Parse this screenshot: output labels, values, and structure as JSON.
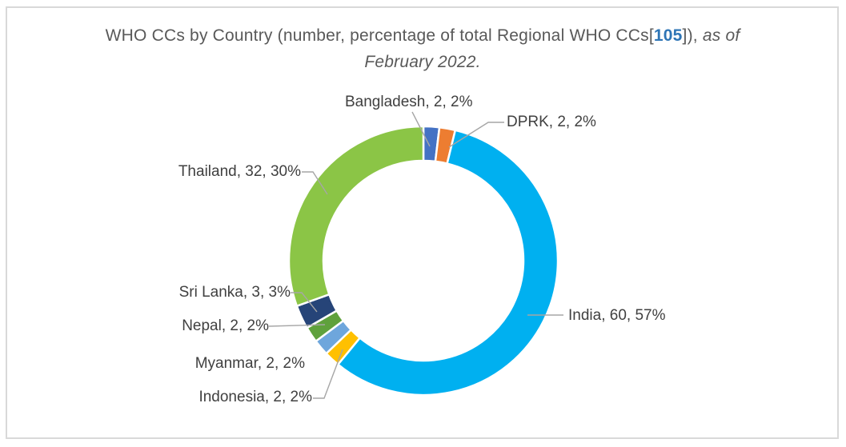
{
  "title": {
    "prefix": "WHO CCs by Country (number, percentage of total Regional WHO CCs[",
    "ref": "105",
    "middle": "]), ",
    "italic": "as of February 2022."
  },
  "chart_data": {
    "type": "pie",
    "subtype": "donut",
    "title": "WHO CCs by Country (number, percentage of total Regional WHO CCs[105]), as of February 2022.",
    "total": 105,
    "start_angle_deg": 0,
    "direction": "clockwise",
    "hole_ratio": 0.74,
    "legend_position": "none",
    "data_labels": "outside-with-leader-lines",
    "segments": [
      {
        "label": "Bangladesh",
        "value": 2,
        "percent": "2%",
        "color": "#4472C4"
      },
      {
        "label": "DPRK",
        "value": 2,
        "percent": "2%",
        "color": "#ED7D31"
      },
      {
        "label": "India",
        "value": 60,
        "percent": "57%",
        "color": "#00B0F0"
      },
      {
        "label": "Indonesia",
        "value": 2,
        "percent": "2%",
        "color": "#FFC000"
      },
      {
        "label": "Myanmar",
        "value": 2,
        "percent": "2%",
        "color": "#6EA6DC"
      },
      {
        "label": "Nepal",
        "value": 2,
        "percent": "2%",
        "color": "#5FA13C"
      },
      {
        "label": "Sri Lanka",
        "value": 3,
        "percent": "3%",
        "color": "#264478"
      },
      {
        "label": "Thailand",
        "value": 32,
        "percent": "30%",
        "color": "#8BC546"
      }
    ]
  },
  "callouts": {
    "bangladesh": "Bangladesh, 2, 2%",
    "dprk": "DPRK, 2, 2%",
    "india": "India, 60, 57%",
    "indonesia": "Indonesia, 2, 2%",
    "myanmar": "Myanmar, 2, 2%",
    "nepal": "Nepal, 2, 2%",
    "srilanka": "Sri Lanka, 3, 3%",
    "thailand": "Thailand, 32, 30%"
  },
  "colors": {
    "border": "#D9D9D9",
    "title_text": "#595959",
    "title_ref": "#2E75B6",
    "label_text": "#404040",
    "leader_line": "#A6A6A6"
  }
}
